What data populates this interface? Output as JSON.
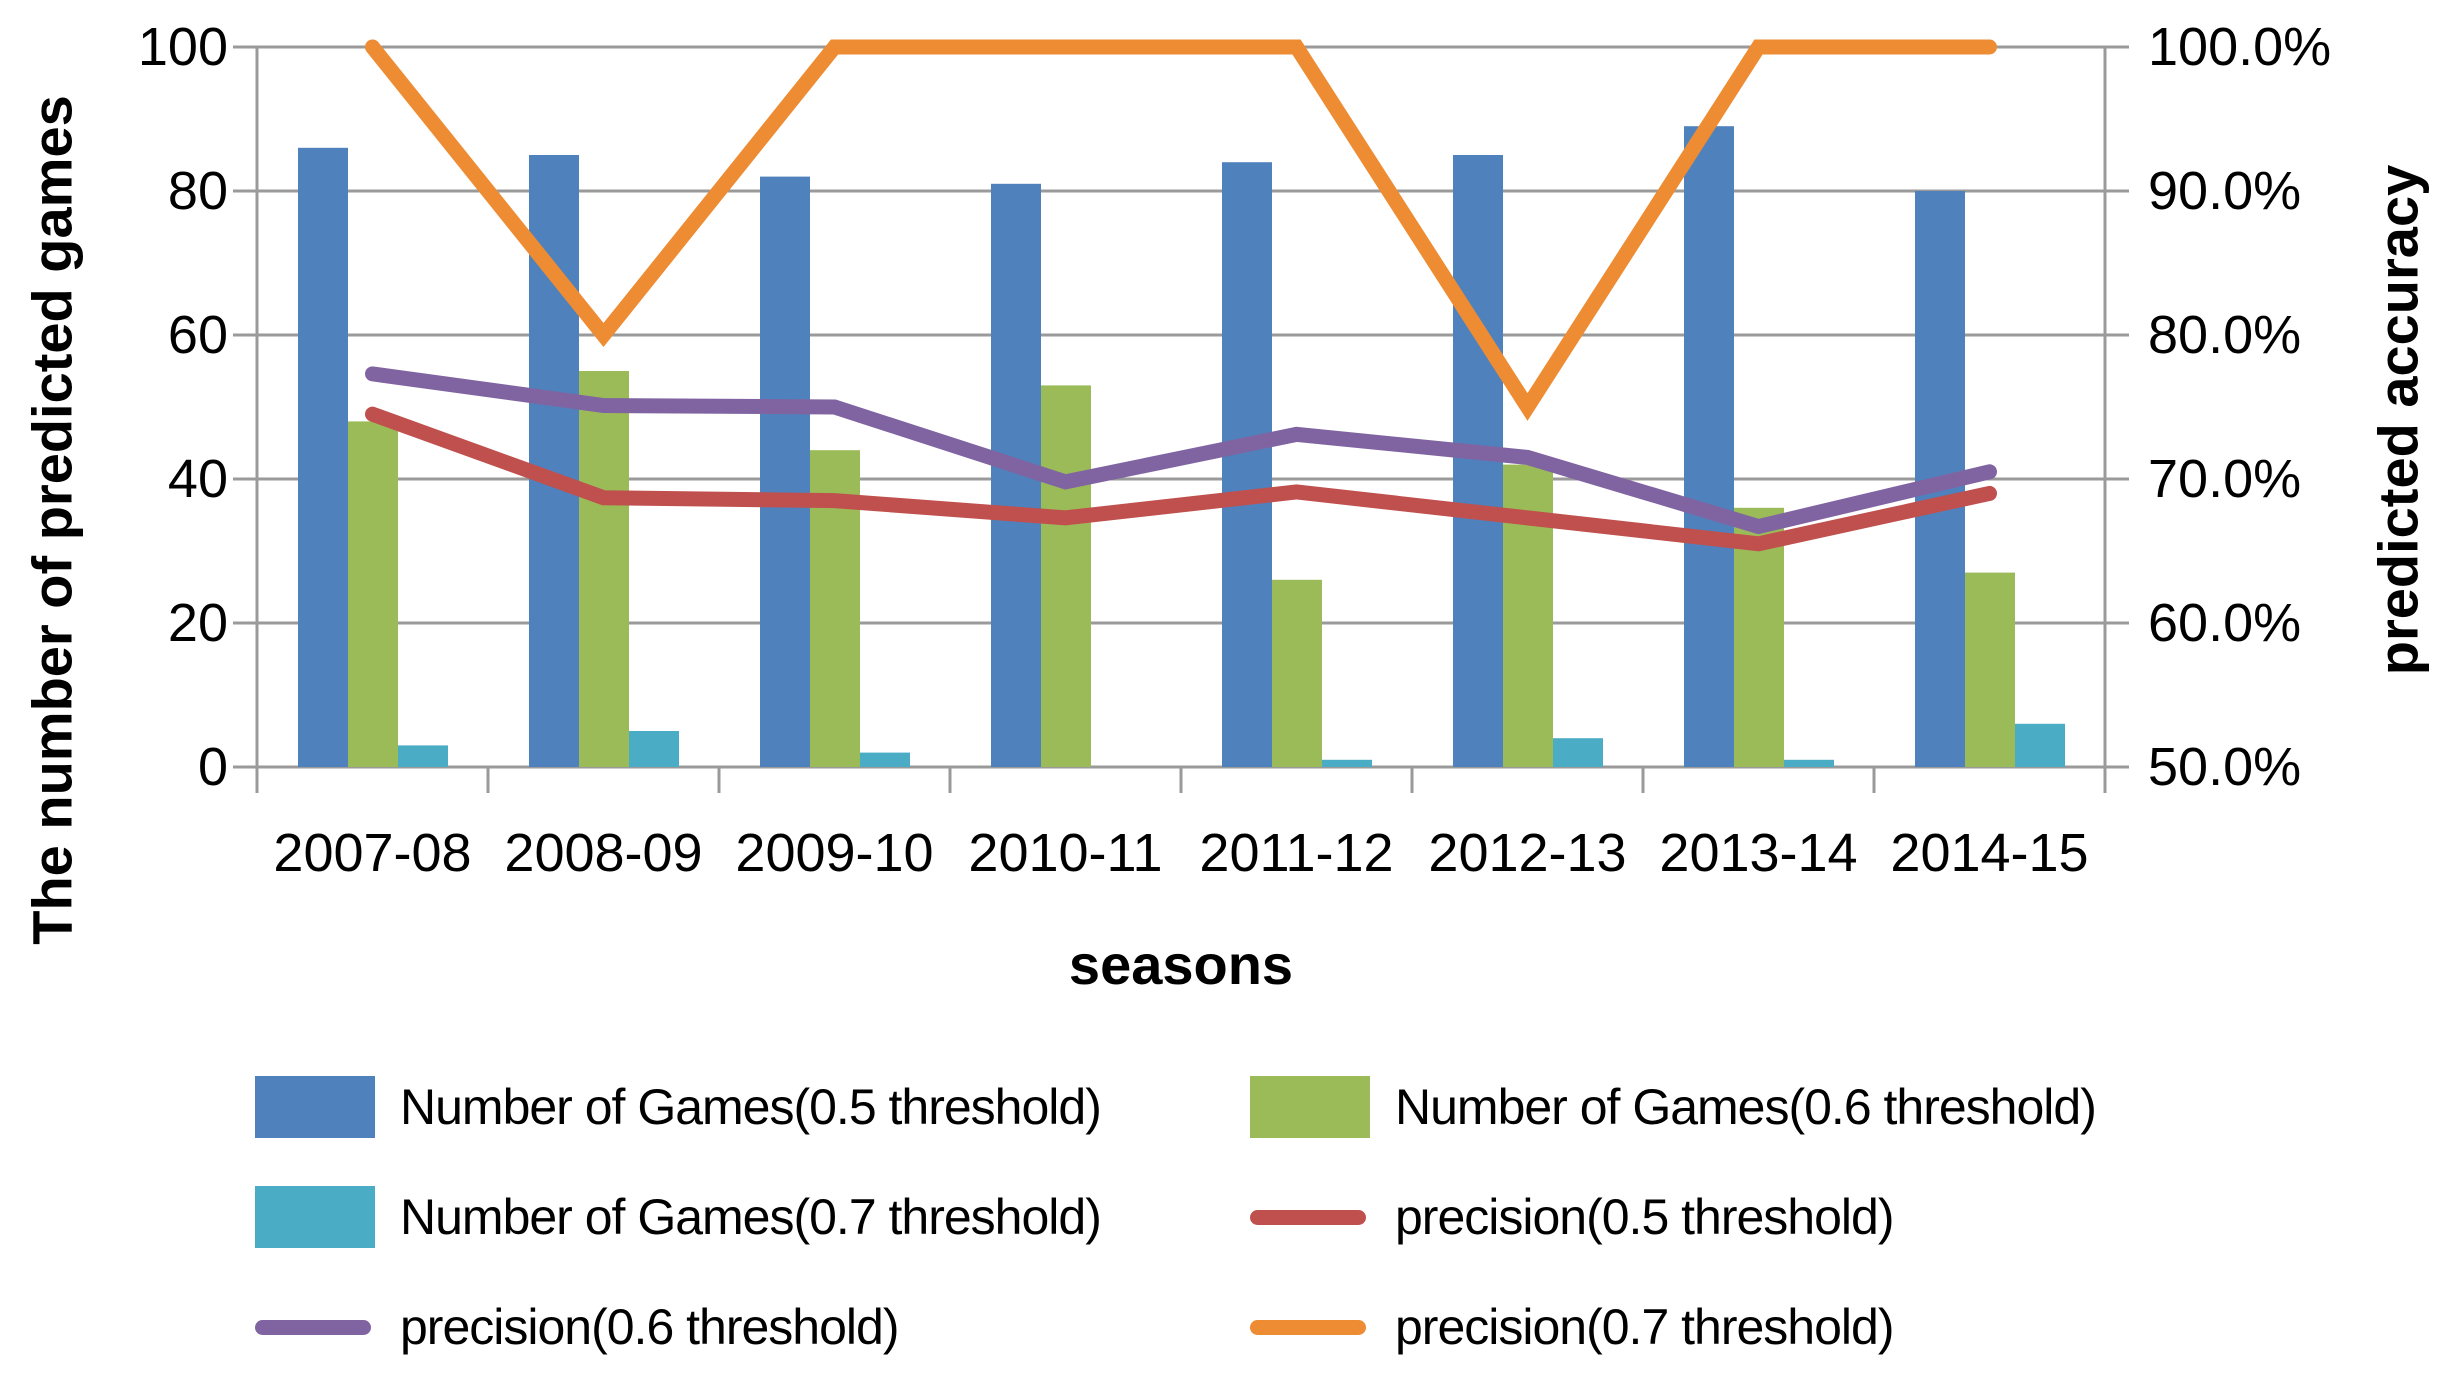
{
  "colors": {
    "bar_blue": "#4F81BD",
    "bar_green": "#9BBB59",
    "bar_teal": "#4BACC6",
    "line_red": "#C0504D",
    "line_purple": "#8064A2",
    "line_orange": "#EE8C33",
    "gridline": "#9a9a9a",
    "axis": "#9a9a9a",
    "text": "#000000",
    "background": "#FFFFFF"
  },
  "chart_data": {
    "type": "combo bar + line, dual axis",
    "categories": [
      "2007-08",
      "2008-09",
      "2009-10",
      "2010-11",
      "2011-12",
      "2012-13",
      "2013-14",
      "2014-15"
    ],
    "x_axis": {
      "title": "seasons"
    },
    "left_axis": {
      "title": "The number of predicted games",
      "ticks": [
        "0",
        "20",
        "40",
        "60",
        "80",
        "100"
      ],
      "tick_values": [
        0,
        20,
        40,
        60,
        80,
        100
      ],
      "range": [
        0,
        100
      ]
    },
    "right_axis": {
      "title": "predicted accuracy",
      "ticks": [
        "50.0%",
        "60.0%",
        "70.0%",
        "80.0%",
        "90.0%",
        "100.0%"
      ],
      "tick_values": [
        50,
        60,
        70,
        80,
        90,
        100
      ],
      "range": [
        50,
        100
      ]
    },
    "grid": true,
    "legend_position": "bottom",
    "series": [
      {
        "name": "Number of Games(0.5 threshold)",
        "type": "bar",
        "axis": "left",
        "color_key": "bar_blue",
        "values": [
          86,
          85,
          82,
          81,
          84,
          85,
          89,
          80
        ]
      },
      {
        "name": "Number of Games(0.6 threshold)",
        "type": "bar",
        "axis": "left",
        "color_key": "bar_green",
        "values": [
          48,
          55,
          44,
          53,
          26,
          42,
          36,
          27
        ]
      },
      {
        "name": "Number of Games(0.7 threshold)",
        "type": "bar",
        "axis": "left",
        "color_key": "bar_teal",
        "values": [
          3,
          5,
          2,
          0,
          1,
          4,
          1,
          6
        ]
      },
      {
        "name": "precision(0.5 threshold)",
        "type": "line",
        "axis": "right",
        "color_key": "line_red",
        "values": [
          74.5,
          68.7,
          68.5,
          67.3,
          69.1,
          67.3,
          65.5,
          69.0
        ]
      },
      {
        "name": "precision(0.6 threshold)",
        "type": "line",
        "axis": "right",
        "color_key": "line_purple",
        "values": [
          77.3,
          75.1,
          75.0,
          69.8,
          73.1,
          71.5,
          66.7,
          70.5
        ]
      },
      {
        "name": "precision(0.7 threshold)",
        "type": "line",
        "axis": "right",
        "color_key": "line_orange",
        "values": [
          100.0,
          80.0,
          100.0,
          100.0,
          100.0,
          75.0,
          100.0,
          100.0
        ]
      }
    ]
  },
  "legend": {
    "items": [
      {
        "label": "Number of Games(0.5 threshold)",
        "swatch": "rect",
        "color_key": "bar_blue"
      },
      {
        "label": "Number of Games(0.6 threshold)",
        "swatch": "rect",
        "color_key": "bar_green"
      },
      {
        "label": "Number of Games(0.7 threshold)",
        "swatch": "rect",
        "color_key": "bar_teal"
      },
      {
        "label": "precision(0.5 threshold)",
        "swatch": "line",
        "color_key": "line_red"
      },
      {
        "label": "precision(0.6 threshold)",
        "swatch": "line",
        "color_key": "line_purple"
      },
      {
        "label": "precision(0.7 threshold)",
        "swatch": "line",
        "color_key": "line_orange"
      }
    ]
  }
}
